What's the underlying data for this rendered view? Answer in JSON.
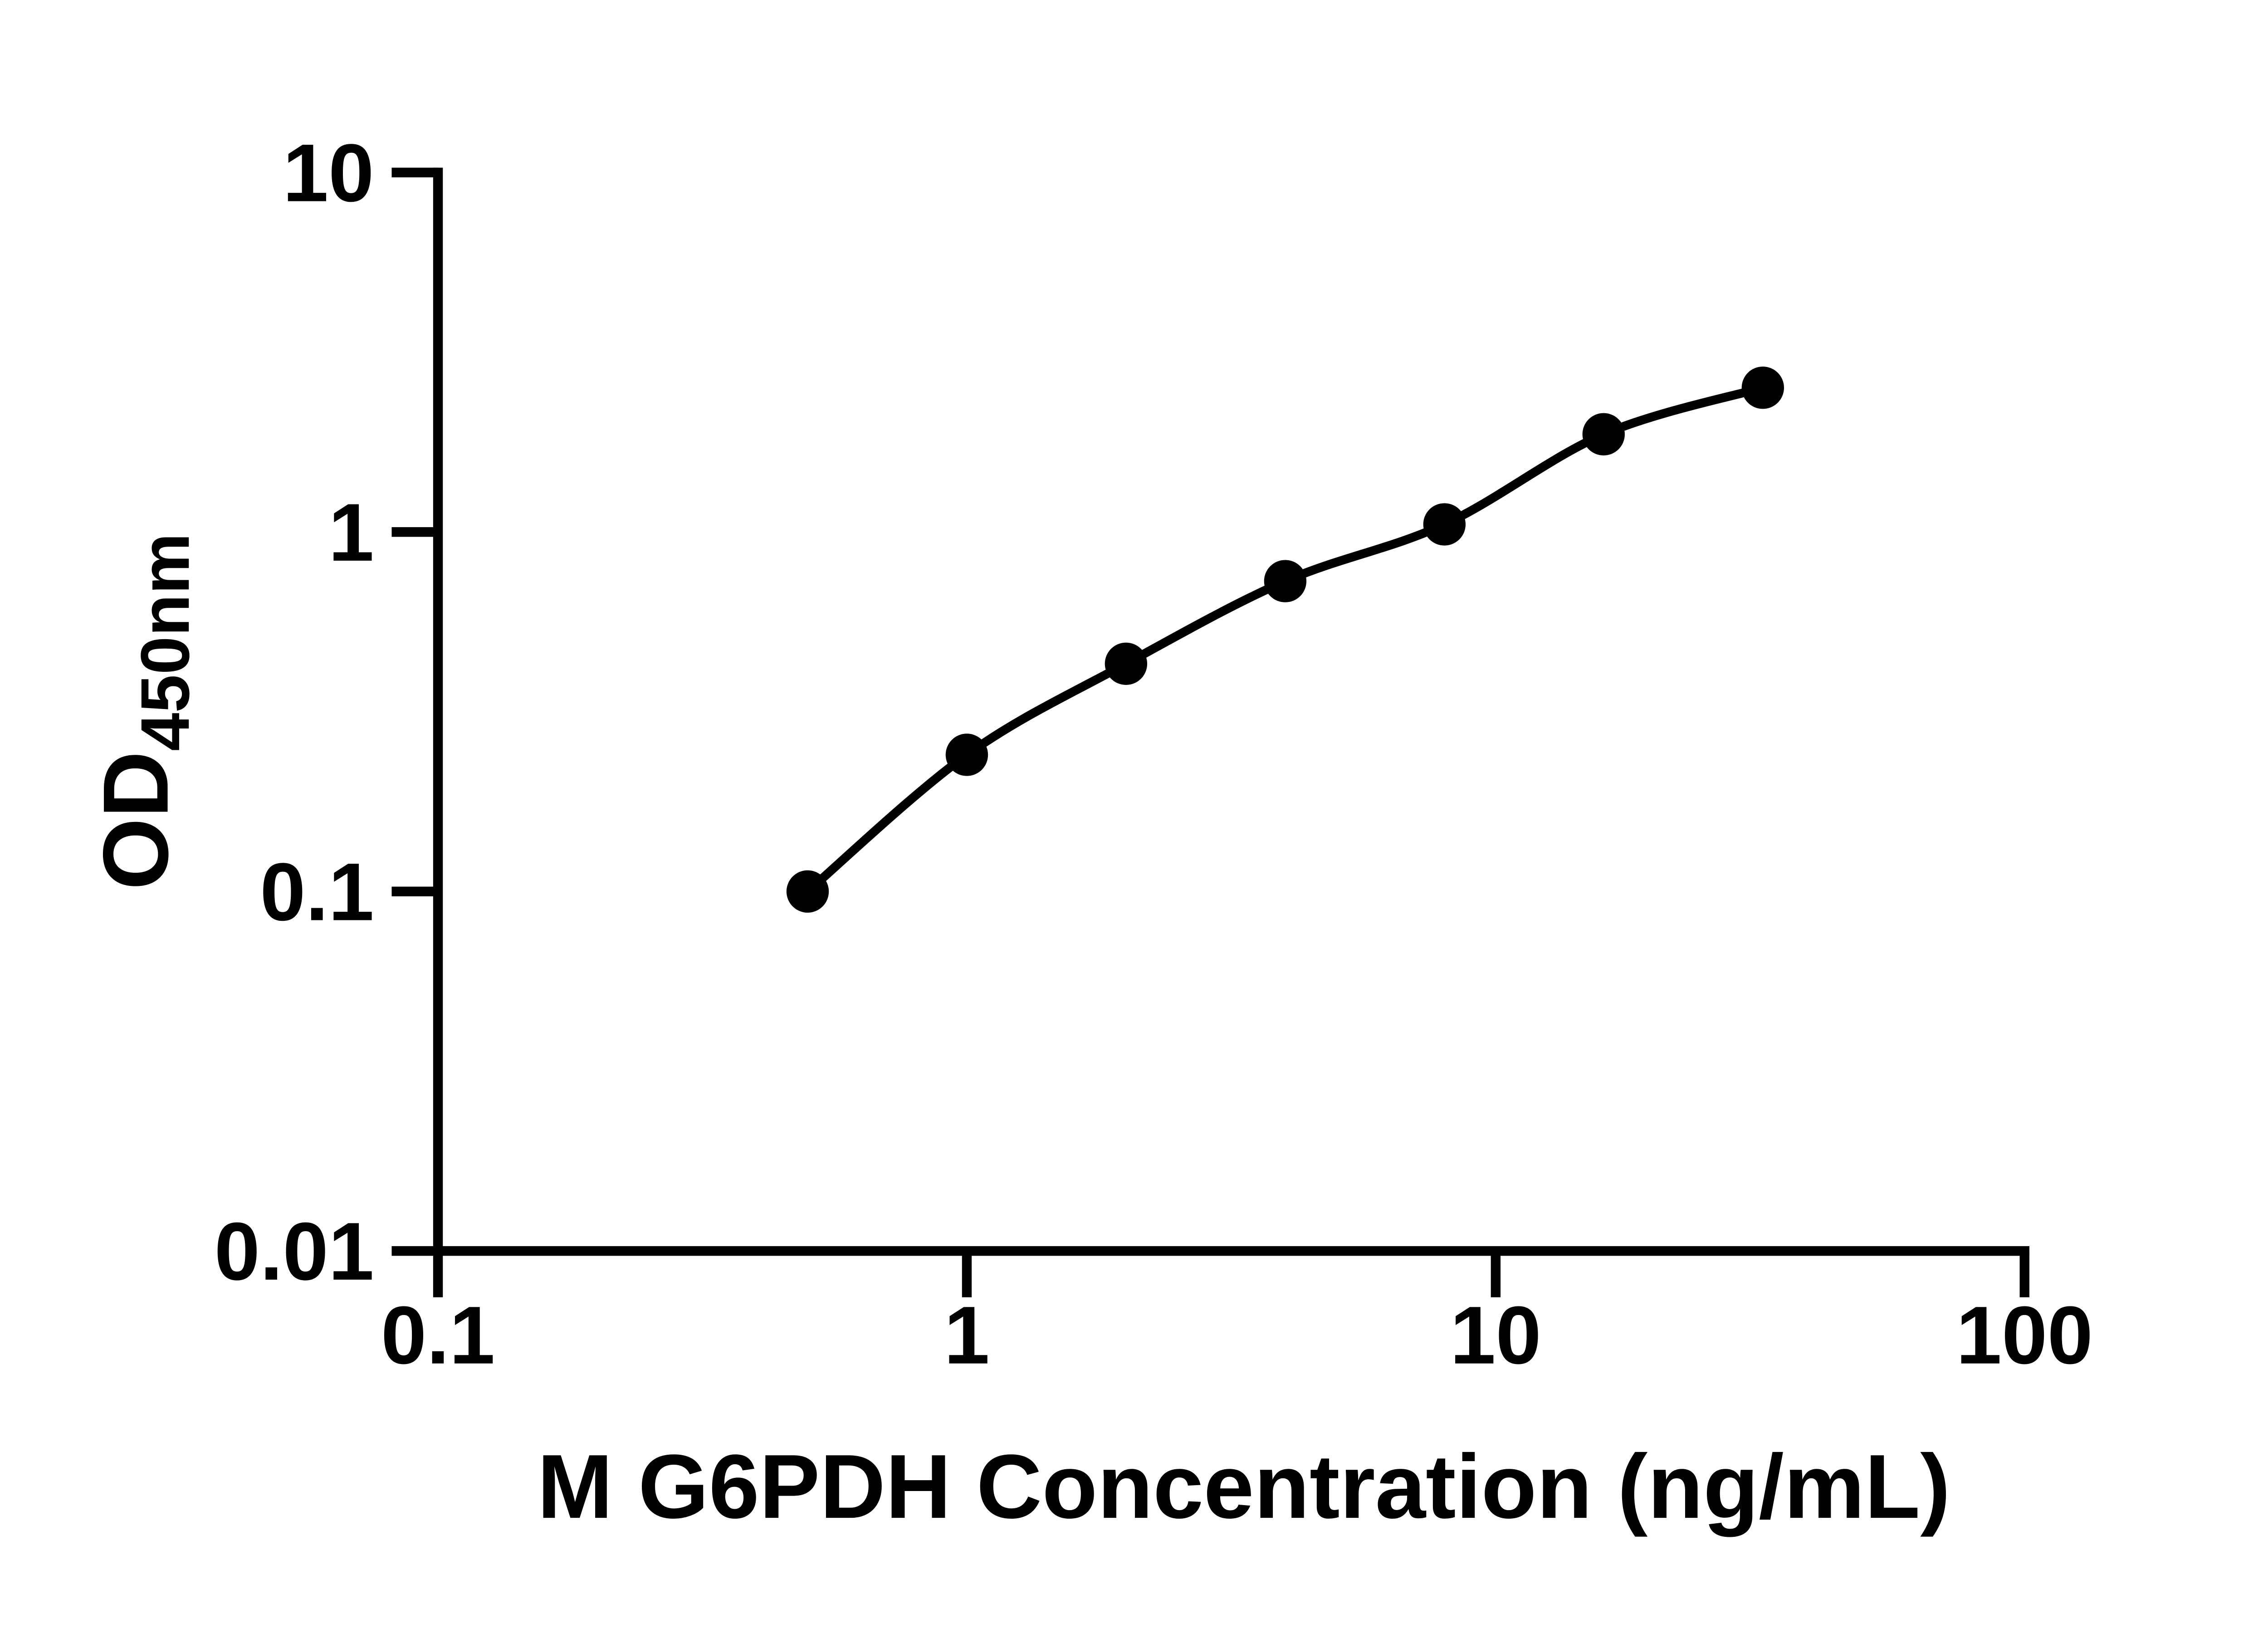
{
  "chart_data": {
    "type": "scatter",
    "subtype": "log-log standard curve with fitted line",
    "title": "",
    "xlabel": "M G6PDH Concentration (ng/mL)",
    "ylabel": "OD450nm",
    "ylabel_main": "OD",
    "ylabel_sub": "450nm",
    "x": [
      0.5,
      1,
      2,
      4,
      8,
      16,
      32
    ],
    "y": [
      0.1,
      0.24,
      0.43,
      0.73,
      1.05,
      1.87,
      2.52
    ],
    "xscale": "log",
    "yscale": "log",
    "xlim": [
      0.1,
      100
    ],
    "ylim": [
      0.01,
      10
    ],
    "x_tick_labels": [
      "0.1",
      "1",
      "10",
      "100"
    ],
    "y_tick_labels": [
      "0.01",
      "0.1",
      "1",
      "10"
    ],
    "grid": false,
    "legend": "none",
    "marker": "filled-circle",
    "colors": {
      "points": "#000000",
      "line": "#000000",
      "axes": "#000000",
      "text": "#000000",
      "background": "#ffffff"
    }
  }
}
